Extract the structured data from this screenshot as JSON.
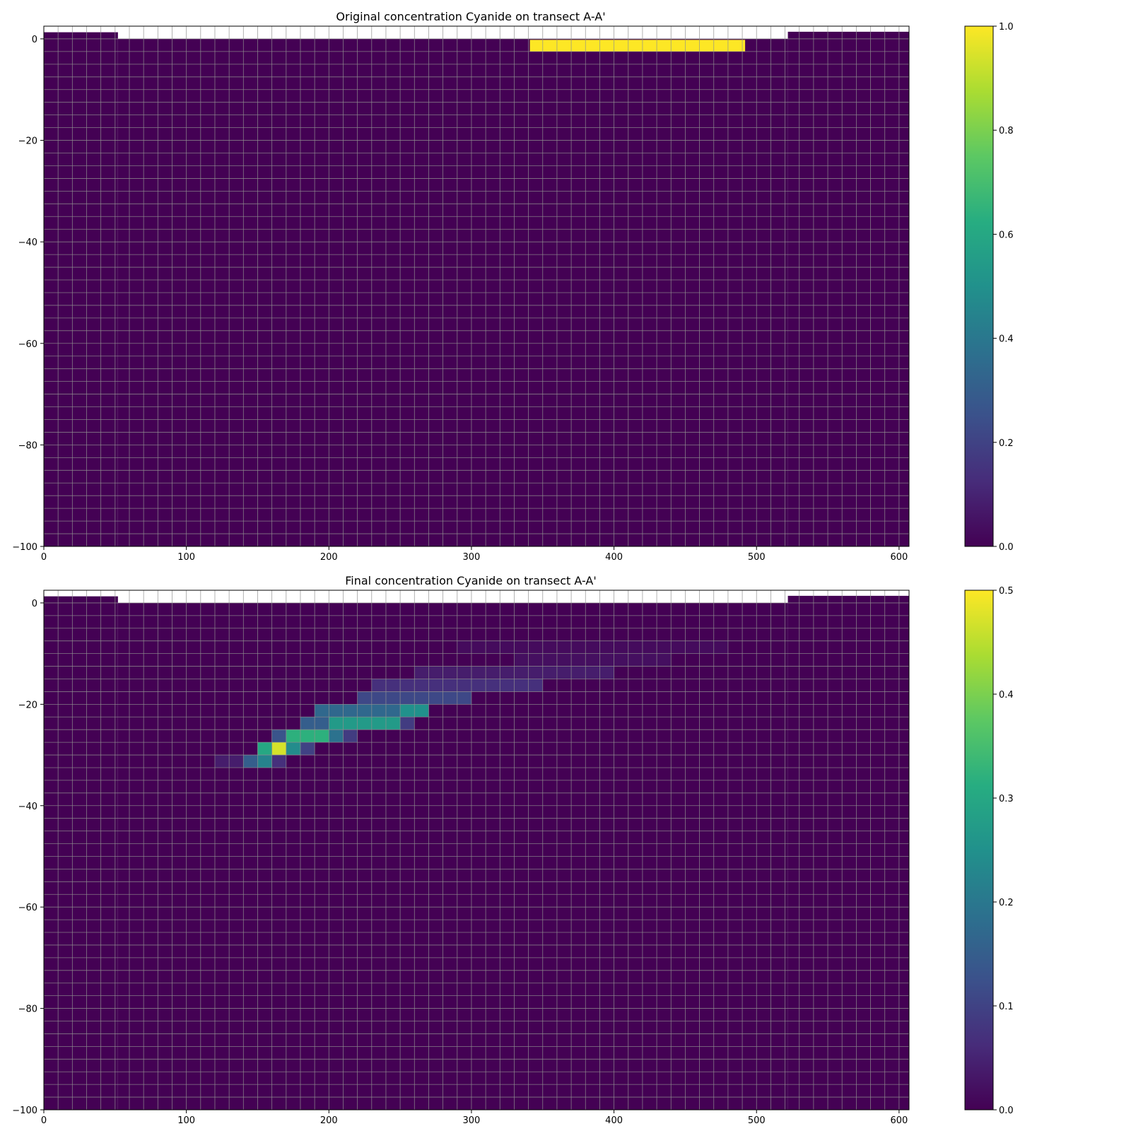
{
  "figure": {
    "panels": [
      {
        "title": "Original concentration Cyanide on transect A-A'",
        "colorbar_ticks": [
          "0.0",
          "0.2",
          "0.4",
          "0.6",
          "0.8",
          "1.0"
        ]
      },
      {
        "title": "Final concentration Cyanide on transect A-A'",
        "colorbar_ticks": [
          "0.0",
          "0.1",
          "0.2",
          "0.3",
          "0.4",
          "0.5"
        ]
      }
    ]
  },
  "chart_data": [
    {
      "type": "heatmap",
      "title": "Original concentration Cyanide on transect A-A'",
      "xlabel": "",
      "ylabel": "",
      "xlim": [
        0,
        607
      ],
      "ylim": [
        -100,
        2.5
      ],
      "xticks": [
        0,
        100,
        200,
        300,
        400,
        500,
        600
      ],
      "yticks": [
        0,
        -20,
        -40,
        -60,
        -80,
        -100
      ],
      "colormap": "viridis",
      "clim": [
        0,
        1.0
      ],
      "colorbar_ticks": [
        0.0,
        0.2,
        0.4,
        0.6,
        0.8,
        1.0
      ],
      "grid": true,
      "column_width": 10,
      "layer_thickness": 2.5,
      "top_surface": [
        {
          "x0": 0,
          "x1": 52,
          "z": 1.3
        },
        {
          "x0": 52,
          "x1": 522,
          "z": 0.0
        },
        {
          "x0": 522,
          "x1": 607,
          "z": 1.4
        }
      ],
      "background_value": 0.0,
      "cells": [
        {
          "x0": 341,
          "x1": 492,
          "z_top": -0.2,
          "z_bottom": -2.5,
          "value": 1.0
        }
      ]
    },
    {
      "type": "heatmap",
      "title": "Final concentration Cyanide on transect A-A'",
      "xlabel": "",
      "ylabel": "",
      "xlim": [
        0,
        607
      ],
      "ylim": [
        -100,
        2.5
      ],
      "xticks": [
        0,
        100,
        200,
        300,
        400,
        500,
        600
      ],
      "yticks": [
        0,
        -20,
        -40,
        -60,
        -80,
        -100
      ],
      "colormap": "viridis",
      "clim": [
        0,
        0.5
      ],
      "colorbar_ticks": [
        0.0,
        0.1,
        0.2,
        0.3,
        0.4,
        0.5
      ],
      "grid": true,
      "column_width": 10,
      "layer_thickness": 2.5,
      "top_surface": [
        {
          "x0": 0,
          "x1": 52,
          "z": 1.3
        },
        {
          "x0": 52,
          "x1": 522,
          "z": 0.0
        },
        {
          "x0": 522,
          "x1": 607,
          "z": 1.4
        }
      ],
      "background_value": 0.0,
      "cells": [
        {
          "x0": 290,
          "x1": 480,
          "z_top": -7.5,
          "z_bottom": -10.0,
          "value": 0.015
        },
        {
          "x0": 330,
          "x1": 440,
          "z_top": -10.0,
          "z_bottom": -12.5,
          "value": 0.02
        },
        {
          "x0": 260,
          "x1": 400,
          "z_top": -12.5,
          "z_bottom": -15.0,
          "value": 0.04
        },
        {
          "x0": 230,
          "x1": 350,
          "z_top": -15.0,
          "z_bottom": -17.5,
          "value": 0.07
        },
        {
          "x0": 220,
          "x1": 300,
          "z_top": -17.5,
          "z_bottom": -20.0,
          "value": 0.11
        },
        {
          "x0": 190,
          "x1": 250,
          "z_top": -20.0,
          "z_bottom": -22.5,
          "value": 0.17
        },
        {
          "x0": 250,
          "x1": 270,
          "z_top": -20.0,
          "z_bottom": -22.5,
          "value": 0.25
        },
        {
          "x0": 180,
          "x1": 200,
          "z_top": -22.5,
          "z_bottom": -25.0,
          "value": 0.15
        },
        {
          "x0": 200,
          "x1": 250,
          "z_top": -22.5,
          "z_bottom": -25.0,
          "value": 0.27
        },
        {
          "x0": 250,
          "x1": 260,
          "z_top": -22.5,
          "z_bottom": -25.0,
          "value": 0.09
        },
        {
          "x0": 160,
          "x1": 170,
          "z_top": -25.0,
          "z_bottom": -27.5,
          "value": 0.13
        },
        {
          "x0": 170,
          "x1": 200,
          "z_top": -25.0,
          "z_bottom": -27.5,
          "value": 0.32
        },
        {
          "x0": 200,
          "x1": 210,
          "z_top": -25.0,
          "z_bottom": -27.5,
          "value": 0.19
        },
        {
          "x0": 210,
          "x1": 220,
          "z_top": -25.0,
          "z_bottom": -27.5,
          "value": 0.09
        },
        {
          "x0": 150,
          "x1": 160,
          "z_top": -27.5,
          "z_bottom": -30.0,
          "value": 0.3
        },
        {
          "x0": 160,
          "x1": 170,
          "z_top": -27.5,
          "z_bottom": -30.0,
          "value": 0.47
        },
        {
          "x0": 170,
          "x1": 180,
          "z_top": -27.5,
          "z_bottom": -30.0,
          "value": 0.24
        },
        {
          "x0": 180,
          "x1": 190,
          "z_top": -27.5,
          "z_bottom": -30.0,
          "value": 0.1
        },
        {
          "x0": 140,
          "x1": 150,
          "z_top": -30.0,
          "z_bottom": -32.5,
          "value": 0.15
        },
        {
          "x0": 150,
          "x1": 160,
          "z_top": -30.0,
          "z_bottom": -32.5,
          "value": 0.22
        },
        {
          "x0": 160,
          "x1": 170,
          "z_top": -30.0,
          "z_bottom": -32.5,
          "value": 0.07
        },
        {
          "x0": 120,
          "x1": 140,
          "z_top": -30.0,
          "z_bottom": -32.5,
          "value": 0.04
        }
      ]
    }
  ]
}
